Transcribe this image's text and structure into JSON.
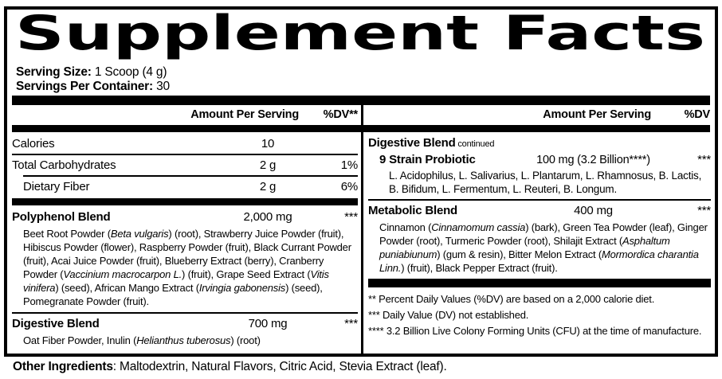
{
  "title": "Supplement Facts",
  "colors": {
    "ink": "#000000",
    "paper": "#ffffff"
  },
  "serving": {
    "size_label": "Serving Size:",
    "size_value": " 1 Scoop (4 g)",
    "container_label": "Servings Per Container:",
    "container_value": " 30"
  },
  "left": {
    "header": {
      "amount": "Amount Per Serving",
      "dv": "%DV**"
    },
    "rows": [
      {
        "name": "Calories",
        "amount": "10",
        "dv": ""
      },
      {
        "name": "Total Carbohydrates",
        "amount": "2 g",
        "dv": "1%"
      },
      {
        "name": "Dietary Fiber",
        "amount": "2 g",
        "dv": "6%"
      }
    ],
    "polyphenol": {
      "name": "Polyphenol Blend",
      "amount": "2,000 mg",
      "dv": "***",
      "desc": [
        {
          "t": "Beet Root Powder ("
        },
        {
          "t": "Beta vulgaris",
          "i": true
        },
        {
          "t": ") (root), Strawberry Juice Powder (fruit), Hibiscus Powder (flower), Raspberry Powder (fruit), Black Currant Powder (fruit), Acai Juice Powder (fruit), Blueberry Extract (berry), Cranberry Powder ("
        },
        {
          "t": "Vaccinium macrocarpon L.",
          "i": true
        },
        {
          "t": ") (fruit), Grape Seed Extract ("
        },
        {
          "t": "Vitis vinifera",
          "i": true
        },
        {
          "t": ") (seed), African Mango Extract ("
        },
        {
          "t": "Irvingia gabonensis",
          "i": true
        },
        {
          "t": ") (seed), Pomegranate Powder (fruit)."
        }
      ]
    },
    "digestive": {
      "name": "Digestive Blend",
      "amount": "700 mg",
      "dv": "***",
      "desc": [
        {
          "t": "Oat Fiber Powder, Inulin ("
        },
        {
          "t": "Helianthus tuberosus",
          "i": true
        },
        {
          "t": ") (root)"
        }
      ]
    }
  },
  "right": {
    "header": {
      "amount": "Amount Per Serving",
      "dv": "%DV"
    },
    "digestive_continued": {
      "name": "Digestive Blend",
      "suffix": " continued"
    },
    "probiotic": {
      "name": "9 Strain Probiotic",
      "amount": "100 mg (3.2 Billion****)",
      "dv": "***",
      "desc": [
        {
          "t": "L. Acidophilus, L. Salivarius, L. Plantarum, L. Rhamnosus, B. Lactis, B. Bifidum, L. Fermentum, L. Reuteri, B. Longum."
        }
      ]
    },
    "metabolic": {
      "name": "Metabolic Blend",
      "amount": "400 mg",
      "dv": "***",
      "desc": [
        {
          "t": "Cinnamon ("
        },
        {
          "t": "Cinnamomum cassia",
          "i": true
        },
        {
          "t": ") (bark), Green Tea Powder (leaf), Ginger Powder (root), Turmeric Powder (root), Shilajit Extract ("
        },
        {
          "t": "Asphaltum puniabiunum",
          "i": true
        },
        {
          "t": ") (gum & resin), Bitter Melon Extract ("
        },
        {
          "t": "Mormordica charantia Linn.",
          "i": true
        },
        {
          "t": ") (fruit), Black Pepper Extract (fruit)."
        }
      ]
    },
    "footnotes": [
      "** Percent Daily Values (%DV) are based on a 2,000 calorie diet.",
      "*** Daily Value (DV) not established.",
      "**** 3.2 Billion Live Colony Forming Units (CFU) at the time of manufacture."
    ]
  },
  "other_ingredients": {
    "label": "Other Ingredients",
    "text": ": Maltodextrin, Natural Flavors, Citric Acid, Stevia Extract (leaf)."
  }
}
